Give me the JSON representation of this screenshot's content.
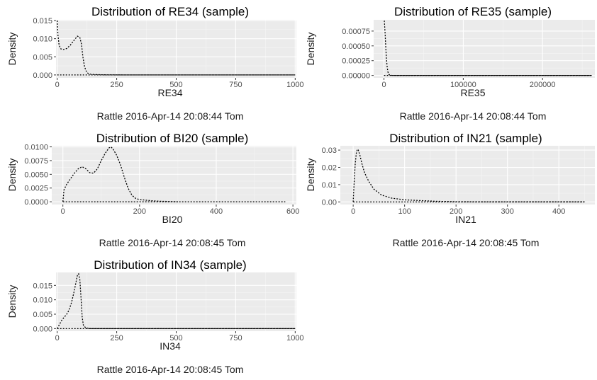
{
  "chart_data": [
    {
      "type": "area",
      "title": "Distribution of RE34 (sample)",
      "xlabel": "RE34",
      "ylabel": "Density",
      "caption": "Rattle 2016-Apr-14 20:08:44 Tom",
      "xlim": [
        -5,
        1005
      ],
      "ylim": [
        -0.0008,
        0.0152
      ],
      "x_ticks": [
        0,
        250,
        500,
        750,
        1000
      ],
      "x_tick_labels": [
        "0",
        "250",
        "500",
        "750",
        "1000"
      ],
      "y_ticks": [
        0,
        0.005,
        0.01,
        0.015
      ],
      "y_tick_labels": [
        "0.000",
        "0.005",
        "0.010",
        "0.015"
      ],
      "baseline_x": [
        0,
        1000
      ],
      "x": [
        0,
        3,
        8,
        15,
        25,
        40,
        55,
        70,
        85,
        95,
        102,
        108,
        115,
        125,
        140,
        160,
        200,
        300,
        1000
      ],
      "y": [
        0.015,
        0.011,
        0.0082,
        0.0072,
        0.007,
        0.0073,
        0.0082,
        0.0095,
        0.0107,
        0.0103,
        0.0085,
        0.005,
        0.0022,
        0.0006,
        0.0002,
        0.0001,
        3e-05,
        0,
        0
      ]
    },
    {
      "type": "area",
      "title": "Distribution of RE35 (sample)",
      "xlabel": "RE35",
      "ylabel": "Density",
      "caption": "Rattle 2016-Apr-14 20:08:44 Tom",
      "xlim": [
        -13000,
        266000
      ],
      "ylim": [
        -4e-05,
        0.00094
      ],
      "x_ticks": [
        0,
        100000,
        200000
      ],
      "x_tick_labels": [
        "0",
        "100000",
        "200000"
      ],
      "y_ticks": [
        0,
        0.00025,
        0.0005,
        0.00075
      ],
      "y_tick_labels": [
        "0.00000",
        "0.00025",
        "0.00050",
        "0.00075"
      ],
      "baseline_x": [
        0,
        262000
      ],
      "x": [
        0,
        400,
        800,
        1500,
        2200,
        3000,
        4000,
        5000,
        6000,
        8000,
        10000,
        15000,
        262000
      ],
      "y": [
        0.00092,
        0.00092,
        0.00085,
        0.0007,
        0.0005,
        0.0003,
        0.00015,
        6e-05,
        2e-05,
        5e-06,
        1e-06,
        0,
        0
      ]
    },
    {
      "type": "area",
      "title": "Distribution of BI20 (sample)",
      "xlabel": "BI20",
      "ylabel": "Density",
      "caption": "Rattle 2016-Apr-14 20:08:45 Tom",
      "xlim": [
        -29,
        609
      ],
      "ylim": [
        -0.0005,
        0.0102
      ],
      "x_ticks": [
        0,
        200,
        400,
        600
      ],
      "x_tick_labels": [
        "0",
        "200",
        "400",
        "600"
      ],
      "y_ticks": [
        0,
        0.0025,
        0.005,
        0.0075,
        0.01
      ],
      "y_tick_labels": [
        "0.0000",
        "0.0025",
        "0.0050",
        "0.0075",
        "0.0100"
      ],
      "baseline_x": [
        0,
        580
      ],
      "x": [
        0,
        3,
        10,
        20,
        30,
        40,
        50,
        60,
        70,
        80,
        90,
        100,
        110,
        120,
        125,
        130,
        140,
        150,
        160,
        170,
        180,
        190,
        200,
        215,
        230,
        250,
        300
      ],
      "y": [
        0,
        0.0022,
        0.0032,
        0.0042,
        0.0052,
        0.006,
        0.0064,
        0.006,
        0.0053,
        0.0052,
        0.006,
        0.0075,
        0.0088,
        0.0098,
        0.01,
        0.0097,
        0.0085,
        0.0068,
        0.0045,
        0.0025,
        0.0012,
        0.0006,
        0.0004,
        0.0003,
        0.0002,
        0.0001,
        0
      ]
    },
    {
      "type": "area",
      "title": "Distribution of IN21 (sample)",
      "xlabel": "IN21",
      "ylabel": "Density",
      "caption": "Rattle 2016-Apr-14 20:08:45 Tom",
      "xlim": [
        -25,
        470
      ],
      "ylim": [
        -0.0015,
        0.0325
      ],
      "x_ticks": [
        0,
        100,
        200,
        300,
        400
      ],
      "x_tick_labels": [
        "0",
        "100",
        "200",
        "300",
        "400"
      ],
      "y_ticks": [
        0,
        0.01,
        0.02,
        0.03
      ],
      "y_tick_labels": [
        "0.00",
        "0.01",
        "0.02",
        "0.03"
      ],
      "baseline_x": [
        0,
        450
      ],
      "x": [
        0,
        2,
        4,
        6,
        8,
        10,
        13,
        17,
        22,
        30,
        40,
        55,
        75,
        100,
        130,
        160,
        200,
        250,
        450
      ],
      "y": [
        0,
        0.012,
        0.022,
        0.028,
        0.0305,
        0.03,
        0.027,
        0.022,
        0.017,
        0.012,
        0.0075,
        0.004,
        0.0022,
        0.0012,
        0.0008,
        0.0004,
        0.0001,
        0,
        0
      ]
    },
    {
      "type": "area",
      "title": "Distribution of IN34 (sample)",
      "xlabel": "IN34",
      "ylabel": "Density",
      "caption": "Rattle 2016-Apr-14 20:08:45 Tom",
      "xlim": [
        -5,
        1005
      ],
      "ylim": [
        -0.0009,
        0.0195
      ],
      "x_ticks": [
        0,
        250,
        500,
        750,
        1000
      ],
      "x_tick_labels": [
        "0",
        "250",
        "500",
        "750",
        "1000"
      ],
      "y_ticks": [
        0,
        0.005,
        0.01,
        0.015
      ],
      "y_tick_labels": [
        "0.000",
        "0.005",
        "0.010",
        "0.015"
      ],
      "baseline_x": [
        0,
        1000
      ],
      "x": [
        0,
        10,
        20,
        30,
        40,
        50,
        60,
        70,
        80,
        85,
        90,
        95,
        100,
        105,
        110,
        120,
        140,
        1000
      ],
      "y": [
        0,
        0.0015,
        0.003,
        0.004,
        0.005,
        0.0065,
        0.009,
        0.0125,
        0.0165,
        0.0185,
        0.019,
        0.017,
        0.011,
        0.004,
        0.0012,
        0.0002,
        0,
        0
      ]
    }
  ]
}
